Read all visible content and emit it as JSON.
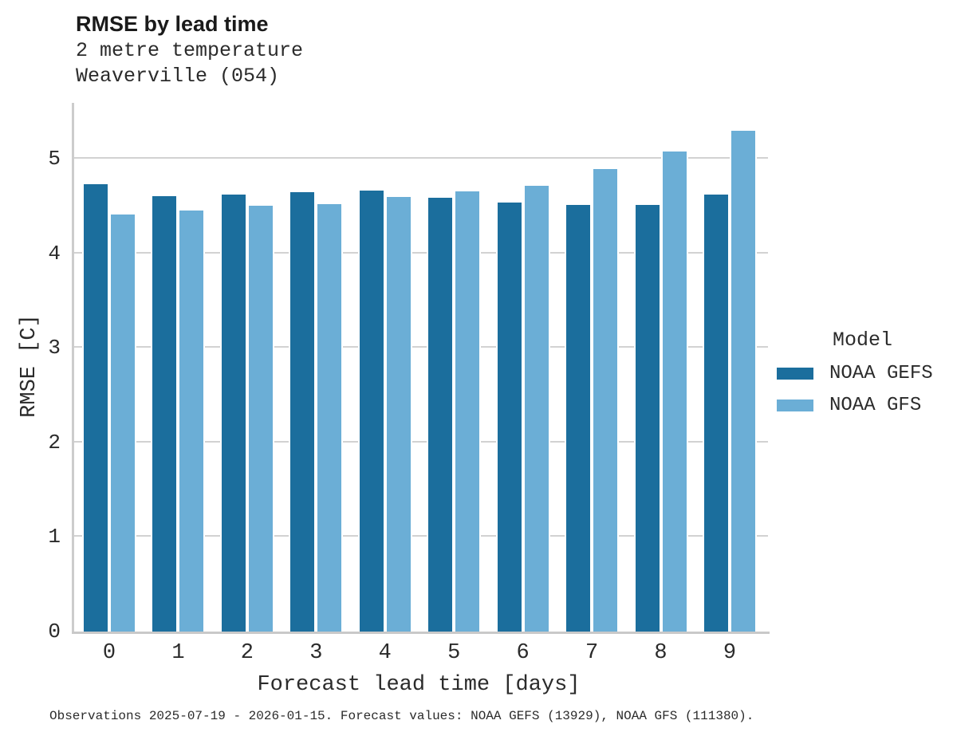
{
  "header": {
    "title": "RMSE by lead time",
    "subtitle_line1": "2 metre temperature",
    "subtitle_line2": "Weaverville (054)"
  },
  "chart_data": {
    "type": "bar",
    "title": "RMSE by lead time",
    "subtitle": [
      "2 metre temperature",
      "Weaverville (054)"
    ],
    "categories": [
      "0",
      "1",
      "2",
      "3",
      "4",
      "5",
      "6",
      "7",
      "8",
      "9"
    ],
    "series": [
      {
        "name": "NOAA GEFS",
        "color": "#1b6e9d",
        "values": [
          4.75,
          4.62,
          4.64,
          4.66,
          4.68,
          4.6,
          4.55,
          4.53,
          4.53,
          4.64
        ]
      },
      {
        "name": "NOAA GFS",
        "color": "#6baed6",
        "values": [
          4.43,
          4.47,
          4.52,
          4.54,
          4.61,
          4.67,
          4.73,
          4.91,
          5.09,
          5.31
        ]
      }
    ],
    "xlabel": "Forecast lead time [days]",
    "ylabel": "RMSE [C]",
    "ylim": [
      0,
      5.59
    ],
    "yticks": [
      0,
      1,
      2,
      3,
      4,
      5
    ],
    "grid": "horizontal",
    "legend_title": "Model",
    "legend_position": "right"
  },
  "axes": {
    "xlabel": "Forecast lead time [days]",
    "ylabel": "RMSE [C]"
  },
  "legend": {
    "title": "Model",
    "items": [
      {
        "label": "NOAA GEFS",
        "color": "#1b6e9d"
      },
      {
        "label": "NOAA GFS",
        "color": "#6baed6"
      }
    ]
  },
  "footer": {
    "caption": "Observations 2025-07-19 - 2026-01-15. Forecast values: NOAA GEFS (13929), NOAA GFS (111380)."
  },
  "colors": {
    "gefs_bar": "#1b6e9d",
    "gfs_bar": "#6baed6",
    "gridline": "#d2d2d2",
    "axis_spine": "#c9c9c9",
    "text": "#2b2b2b",
    "background": "#ffffff"
  }
}
